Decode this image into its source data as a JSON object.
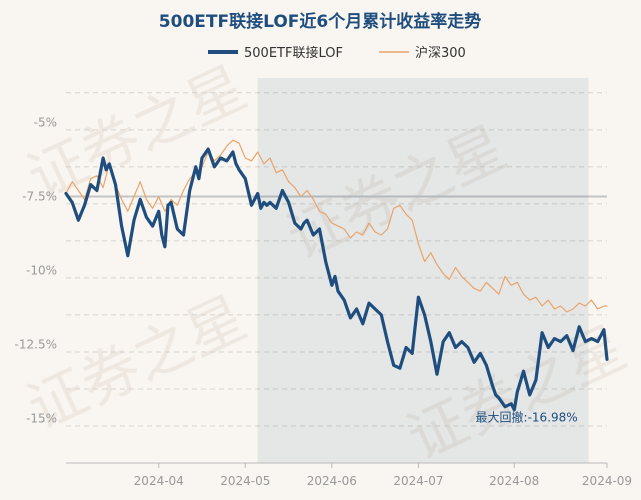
{
  "chart_data": {
    "type": "line",
    "title": "500ETF联接LOF近6个月累计收益率走势",
    "xlabel": "",
    "ylabel": "",
    "y_unit": "%",
    "ylim": [
      -16.5,
      -3.5
    ],
    "y_ticks": [
      -5,
      -7.5,
      -10,
      -12.5,
      -15
    ],
    "y_tick_labels": [
      "-5%",
      "-7.5%",
      "-10%",
      "-12.5%",
      "-15%"
    ],
    "reference_line": -7.5,
    "x_range": [
      0,
      175
    ],
    "x_ticks": [
      {
        "index": 30,
        "label": "2024-04"
      },
      {
        "index": 58,
        "label": "2024-05"
      },
      {
        "index": 86,
        "label": "2024-06"
      },
      {
        "index": 114,
        "label": "2024-07"
      },
      {
        "index": 145,
        "label": "2024-08"
      },
      {
        "index": 175,
        "label": "2024-09"
      }
    ],
    "legend": {
      "position": "top-center"
    },
    "series": [
      {
        "name": "500ETF联接LOF",
        "color": "#1f4e7e",
        "x": [
          0,
          2,
          4,
          6,
          8,
          10,
          12,
          13,
          14,
          16,
          18,
          20,
          22,
          24,
          26,
          28,
          30,
          31,
          32,
          33,
          34,
          36,
          38,
          40,
          42,
          43,
          44,
          46,
          48,
          50,
          52,
          54,
          55,
          56,
          58,
          60,
          62,
          63,
          64,
          65,
          66,
          68,
          70,
          71,
          72,
          74,
          76,
          77,
          78,
          80,
          82,
          84,
          86,
          87,
          88,
          90,
          92,
          94,
          96,
          98,
          100,
          102,
          104,
          106,
          108,
          110,
          112,
          114,
          116,
          118,
          120,
          122,
          124,
          126,
          128,
          130,
          132,
          134,
          136,
          138,
          139,
          140,
          142,
          144,
          145,
          146,
          148,
          150,
          152,
          154,
          156,
          158,
          160,
          162,
          164,
          166,
          168,
          170,
          172,
          174,
          175
        ],
        "values": [
          -7.4,
          -7.7,
          -8.3,
          -7.8,
          -7.1,
          -7.3,
          -6.2,
          -6.6,
          -6.4,
          -7.1,
          -8.5,
          -9.5,
          -8.3,
          -7.6,
          -8.2,
          -8.5,
          -8.0,
          -8.8,
          -9.2,
          -7.8,
          -7.7,
          -8.6,
          -8.8,
          -7.3,
          -6.5,
          -6.9,
          -6.2,
          -5.9,
          -6.5,
          -6.2,
          -6.3,
          -6.0,
          -6.4,
          -6.6,
          -6.9,
          -7.8,
          -7.4,
          -7.9,
          -7.7,
          -7.8,
          -7.7,
          -7.9,
          -7.3,
          -7.5,
          -7.7,
          -8.4,
          -8.6,
          -8.4,
          -8.3,
          -8.8,
          -8.6,
          -9.7,
          -10.5,
          -10.2,
          -10.7,
          -11.0,
          -11.6,
          -11.3,
          -11.8,
          -11.1,
          -11.3,
          -11.5,
          -12.4,
          -13.2,
          -13.3,
          -12.6,
          -12.8,
          -10.9,
          -11.5,
          -12.4,
          -13.5,
          -12.4,
          -12.1,
          -12.6,
          -12.4,
          -12.6,
          -13.1,
          -12.8,
          -13.2,
          -13.9,
          -14.2,
          -14.3,
          -14.6,
          -14.5,
          -14.7,
          -14.1,
          -13.4,
          -14.2,
          -13.7,
          -12.1,
          -12.6,
          -12.3,
          -12.4,
          -12.2,
          -12.7,
          -11.9,
          -12.4,
          -12.3,
          -12.4,
          -12.0,
          -13.0
        ]
      },
      {
        "name": "沪深300",
        "color": "#e8a46b",
        "x": [
          0,
          2,
          4,
          6,
          8,
          10,
          12,
          14,
          16,
          18,
          20,
          22,
          24,
          26,
          28,
          30,
          32,
          34,
          36,
          38,
          40,
          42,
          44,
          46,
          48,
          50,
          52,
          54,
          56,
          58,
          60,
          62,
          64,
          66,
          68,
          70,
          72,
          74,
          76,
          78,
          80,
          82,
          84,
          86,
          88,
          90,
          92,
          94,
          96,
          98,
          100,
          102,
          104,
          106,
          108,
          110,
          112,
          114,
          116,
          118,
          120,
          122,
          124,
          126,
          128,
          130,
          132,
          134,
          136,
          138,
          140,
          142,
          144,
          146,
          148,
          150,
          152,
          154,
          156,
          158,
          160,
          162,
          164,
          166,
          168,
          170,
          172,
          174,
          175
        ],
        "values": [
          -7.4,
          -7.0,
          -7.3,
          -7.6,
          -6.9,
          -6.8,
          -7.2,
          -6.4,
          -7.1,
          -7.6,
          -8.0,
          -7.5,
          -7.0,
          -7.6,
          -7.9,
          -7.5,
          -8.0,
          -7.6,
          -7.8,
          -7.3,
          -6.9,
          -6.7,
          -6.5,
          -6.0,
          -6.3,
          -6.1,
          -5.8,
          -5.6,
          -5.7,
          -6.2,
          -6.3,
          -6.0,
          -6.4,
          -6.2,
          -6.7,
          -6.6,
          -7.0,
          -7.2,
          -7.5,
          -7.3,
          -7.6,
          -8.0,
          -8.1,
          -8.4,
          -8.5,
          -8.6,
          -8.9,
          -8.7,
          -8.8,
          -8.4,
          -8.7,
          -8.8,
          -8.6,
          -7.9,
          -7.8,
          -8.1,
          -8.3,
          -9.1,
          -9.7,
          -9.4,
          -9.8,
          -10.1,
          -10.3,
          -9.9,
          -10.2,
          -10.4,
          -10.6,
          -10.7,
          -10.4,
          -10.6,
          -10.8,
          -10.2,
          -10.5,
          -10.4,
          -10.8,
          -11.0,
          -10.9,
          -11.2,
          -11.0,
          -11.3,
          -11.2,
          -11.4,
          -11.3,
          -11.1,
          -11.2,
          -11.0,
          -11.3,
          -11.2,
          -11.2
        ]
      }
    ],
    "max_drawdown": {
      "label": "最大回撤:-16.98%",
      "start_index": 62,
      "end_index": 169
    }
  }
}
